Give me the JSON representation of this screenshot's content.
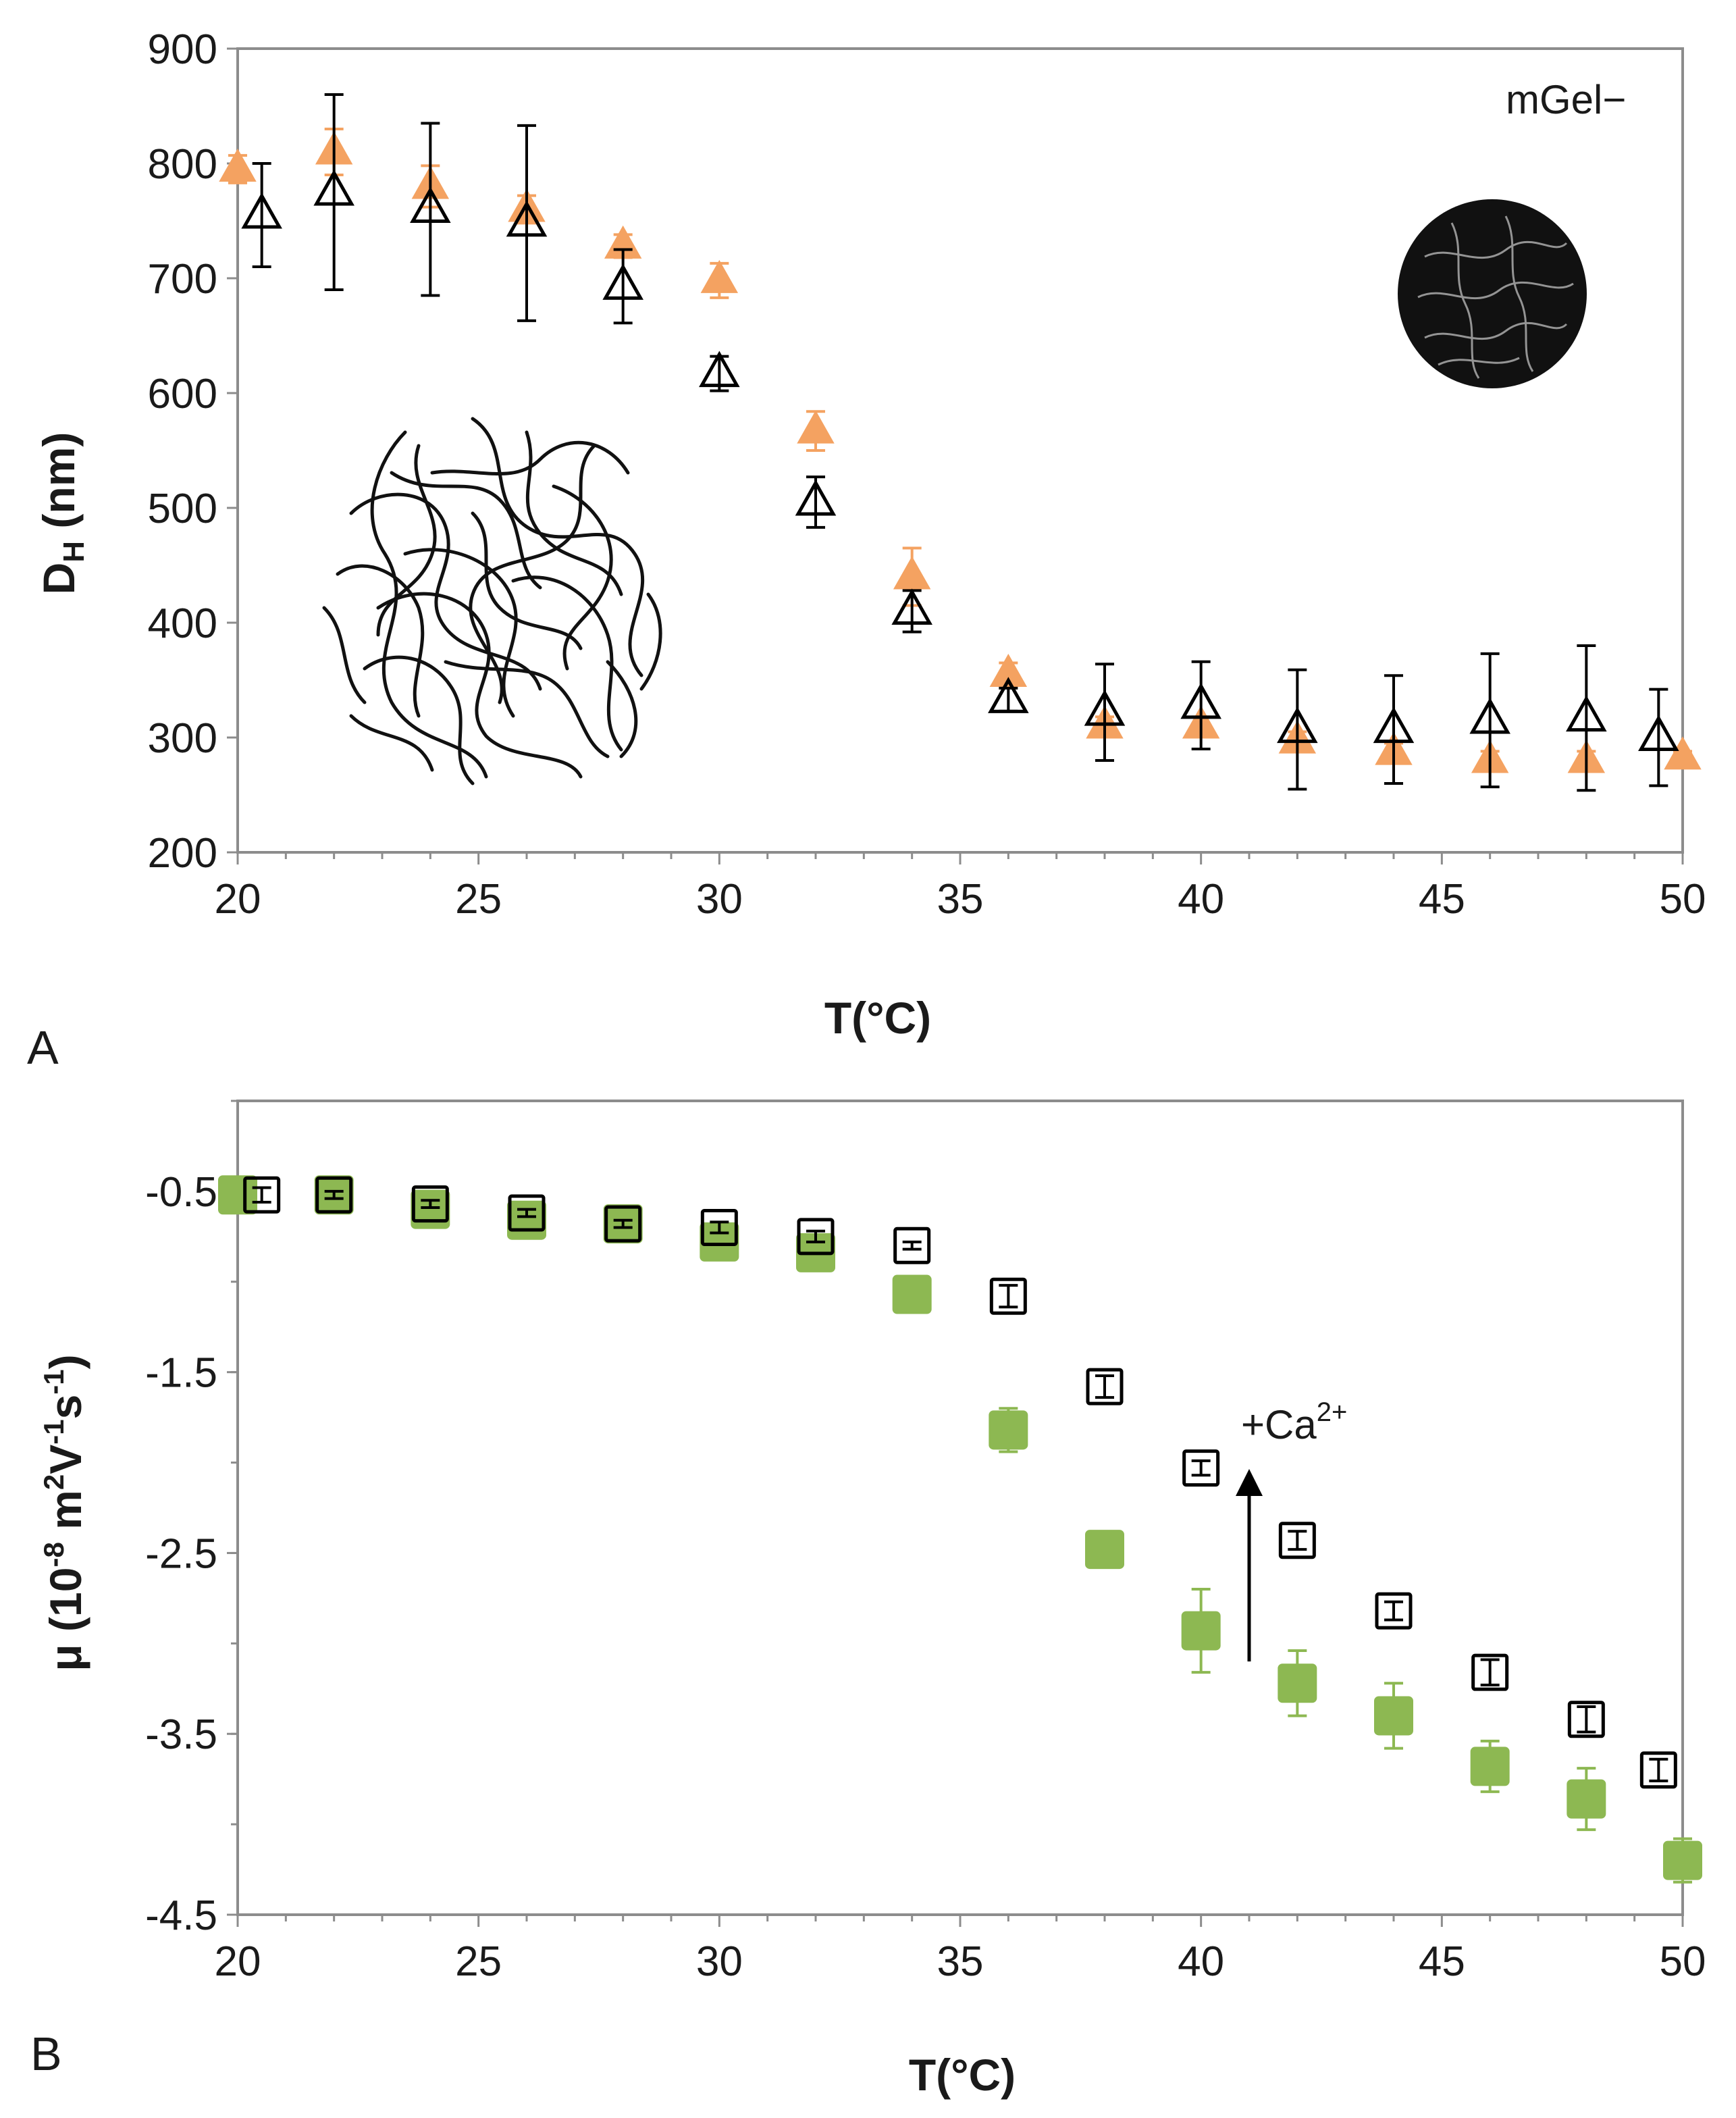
{
  "chart_data": [
    {
      "type": "scatter",
      "panel_label": "A",
      "title": "",
      "xlabel": "T(°C)",
      "ylabel_main": "D",
      "ylabel_sub": "H",
      "ylabel_tail": " (nm)",
      "xlim": [
        20,
        50
      ],
      "ylim": [
        200,
        900
      ],
      "xticks": [
        20,
        25,
        30,
        35,
        40,
        45,
        50
      ],
      "yticks": [
        200,
        300,
        400,
        500,
        600,
        700,
        800,
        900
      ],
      "annotation": "mGel−",
      "colors": {
        "open": "#000000",
        "filled": "#f4a261"
      },
      "series": [
        {
          "name": "open triangles",
          "marker": "open-triangle",
          "points": [
            {
              "x": 20.5,
              "y": 755,
              "err": 45
            },
            {
              "x": 22,
              "y": 775,
              "err": 85
            },
            {
              "x": 24,
              "y": 760,
              "err": 75
            },
            {
              "x": 26,
              "y": 748,
              "err": 85
            },
            {
              "x": 28,
              "y": 693,
              "err": 32
            },
            {
              "x": 30,
              "y": 617,
              "err": 15
            },
            {
              "x": 32,
              "y": 505,
              "err": 22
            },
            {
              "x": 34,
              "y": 410,
              "err": 18
            },
            {
              "x": 36,
              "y": 333,
              "err": 10
            },
            {
              "x": 38,
              "y": 322,
              "err": 42
            },
            {
              "x": 40,
              "y": 328,
              "err": 38
            },
            {
              "x": 42,
              "y": 307,
              "err": 52
            },
            {
              "x": 44,
              "y": 307,
              "err": 47
            },
            {
              "x": 46,
              "y": 315,
              "err": 58
            },
            {
              "x": 48,
              "y": 317,
              "err": 63
            },
            {
              "x": 49.5,
              "y": 300,
              "err": 42
            }
          ]
        },
        {
          "name": "filled triangles",
          "marker": "filled-triangle",
          "points": [
            {
              "x": 20,
              "y": 795,
              "err": 12
            },
            {
              "x": 22,
              "y": 810,
              "err": 20
            },
            {
              "x": 24,
              "y": 780,
              "err": 18
            },
            {
              "x": 26,
              "y": 760,
              "err": 12
            },
            {
              "x": 28,
              "y": 728,
              "err": 10
            },
            {
              "x": 30,
              "y": 698,
              "err": 15
            },
            {
              "x": 32,
              "y": 567,
              "err": 17
            },
            {
              "x": 34,
              "y": 440,
              "err": 25
            },
            {
              "x": 36,
              "y": 355,
              "err": 10
            },
            {
              "x": 38,
              "y": 310,
              "err": 8
            },
            {
              "x": 40,
              "y": 310,
              "err": 8
            },
            {
              "x": 42,
              "y": 297,
              "err": 8
            },
            {
              "x": 44,
              "y": 287,
              "err": 8
            },
            {
              "x": 46,
              "y": 280,
              "err": 8
            },
            {
              "x": 48,
              "y": 280,
              "err": 8
            },
            {
              "x": 50,
              "y": 283,
              "err": 5
            }
          ]
        }
      ]
    },
    {
      "type": "scatter",
      "panel_label": "B",
      "title": "",
      "xlabel": "T(°C)",
      "ylabel_pre": "μ (10",
      "ylabel_exp1": "-8",
      "ylabel_mid1": " m",
      "ylabel_exp2": "2",
      "ylabel_mid2": "V",
      "ylabel_exp3": "-1",
      "ylabel_mid3": "s",
      "ylabel_exp4": "-1",
      "ylabel_end": ")",
      "xlim": [
        20,
        50
      ],
      "ylim": [
        -4.5,
        0
      ],
      "xticks": [
        20,
        25,
        30,
        35,
        40,
        45,
        50
      ],
      "yticks": [
        -0.5,
        -1.5,
        -2.5,
        -3.5,
        -4.5
      ],
      "yticks_labels": [
        "-0.5",
        "-1.5",
        "-2.5",
        "-3.5",
        "-4.5"
      ],
      "annotation_main": "+Ca",
      "annotation_sup": "2+",
      "colors": {
        "open": "#000000",
        "filled": "#8db852"
      },
      "series": [
        {
          "name": "open squares",
          "marker": "open-square",
          "points": [
            {
              "x": 20.5,
              "y": -0.52,
              "err": 0.04
            },
            {
              "x": 22,
              "y": -0.52,
              "err": 0.02
            },
            {
              "x": 24,
              "y": -0.57,
              "err": 0.02
            },
            {
              "x": 26,
              "y": -0.62,
              "err": 0.02
            },
            {
              "x": 28,
              "y": -0.68,
              "err": 0.02
            },
            {
              "x": 30,
              "y": -0.7,
              "err": 0.03
            },
            {
              "x": 32,
              "y": -0.75,
              "err": 0.03
            },
            {
              "x": 34,
              "y": -0.8,
              "err": 0.02
            },
            {
              "x": 36,
              "y": -1.08,
              "err": 0.06
            },
            {
              "x": 38,
              "y": -1.58,
              "err": 0.06
            },
            {
              "x": 40,
              "y": -2.03,
              "err": 0.04
            },
            {
              "x": 42,
              "y": -2.43,
              "err": 0.05
            },
            {
              "x": 44,
              "y": -2.82,
              "err": 0.05
            },
            {
              "x": 46,
              "y": -3.16,
              "err": 0.07
            },
            {
              "x": 48,
              "y": -3.42,
              "err": 0.07
            },
            {
              "x": 49.5,
              "y": -3.7,
              "err": 0.06
            }
          ]
        },
        {
          "name": "filled squares",
          "marker": "filled-square",
          "points": [
            {
              "x": 20,
              "y": -0.52,
              "err": 0.02
            },
            {
              "x": 22,
              "y": -0.52,
              "err": 0.02
            },
            {
              "x": 24,
              "y": -0.6,
              "err": 0.03
            },
            {
              "x": 26,
              "y": -0.66,
              "err": 0.03
            },
            {
              "x": 28,
              "y": -0.68,
              "err": 0.03
            },
            {
              "x": 30,
              "y": -0.78,
              "err": 0.03
            },
            {
              "x": 32,
              "y": -0.84,
              "err": 0.03
            },
            {
              "x": 34,
              "y": -1.07,
              "err": 0.04
            },
            {
              "x": 36,
              "y": -1.82,
              "err": 0.12
            },
            {
              "x": 38,
              "y": -2.48,
              "err": 0.06
            },
            {
              "x": 40,
              "y": -2.93,
              "err": 0.23
            },
            {
              "x": 42,
              "y": -3.22,
              "err": 0.18
            },
            {
              "x": 44,
              "y": -3.4,
              "err": 0.18
            },
            {
              "x": 46,
              "y": -3.68,
              "err": 0.14
            },
            {
              "x": 48,
              "y": -3.86,
              "err": 0.17
            },
            {
              "x": 50,
              "y": -4.2,
              "err": 0.12
            }
          ]
        }
      ]
    }
  ]
}
